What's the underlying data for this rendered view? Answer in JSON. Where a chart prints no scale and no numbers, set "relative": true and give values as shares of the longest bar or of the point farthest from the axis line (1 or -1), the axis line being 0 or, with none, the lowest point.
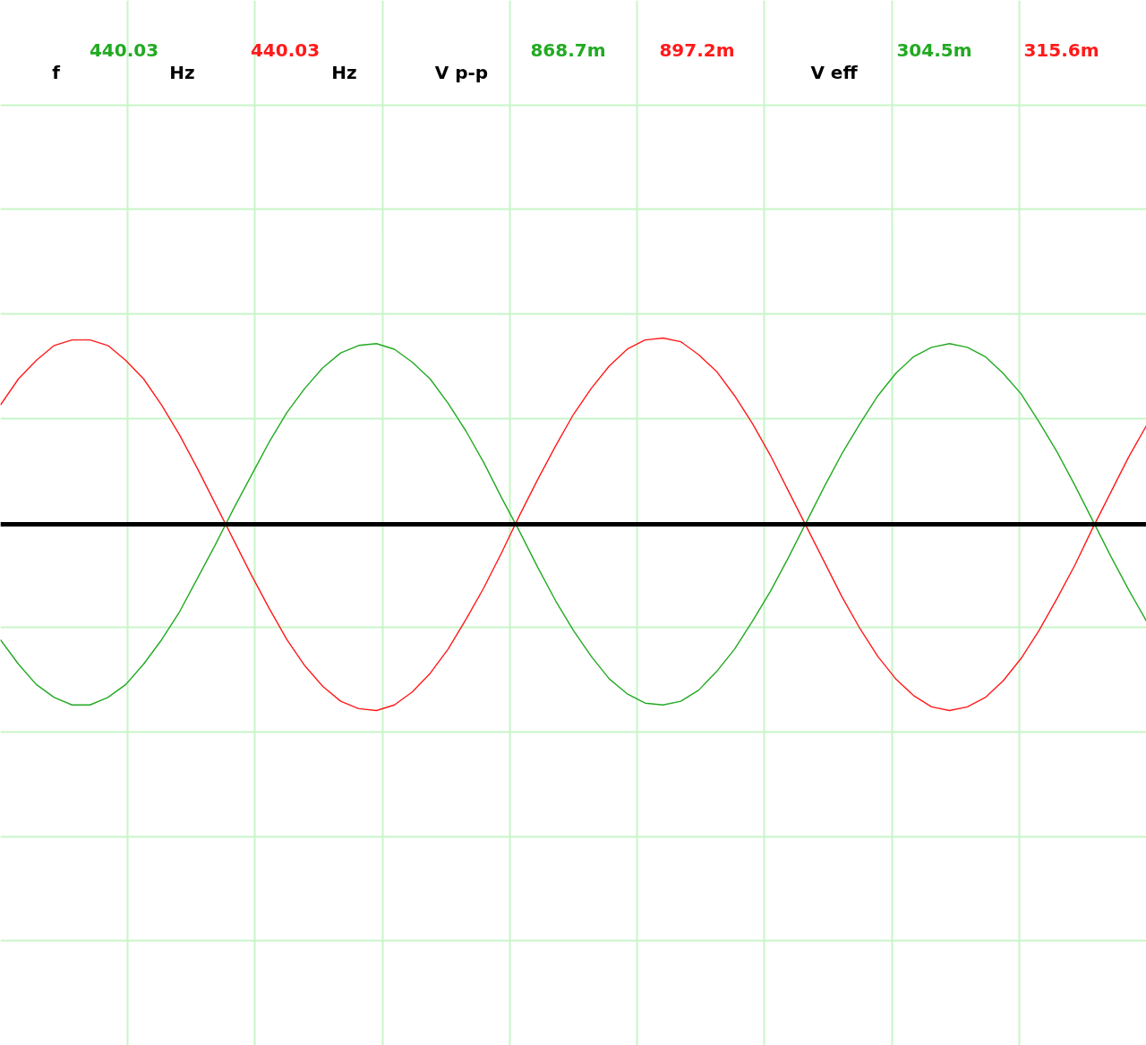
{
  "chart_data": {
    "type": "line",
    "relative": true,
    "tick_labels": false,
    "grid": true,
    "categories": [
      null,
      null,
      null,
      null,
      null,
      null,
      null,
      null,
      null,
      null,
      null,
      null,
      null,
      null,
      null,
      null,
      null,
      null,
      null,
      null,
      null,
      null,
      null,
      null,
      null,
      null,
      null,
      null,
      null,
      null,
      null,
      null,
      null,
      null,
      null,
      null,
      null,
      null,
      null,
      null,
      null,
      null,
      null,
      null,
      null,
      null,
      null,
      null,
      null,
      null,
      null,
      null,
      null,
      null,
      null,
      null,
      null,
      null,
      null,
      null,
      null,
      null,
      null,
      null,
      null
    ],
    "series": [
      {
        "color": "#22aa22",
        "values": [
          -0.62,
          -0.75,
          -0.86,
          -0.93,
          -0.97,
          -0.97,
          -0.93,
          -0.86,
          -0.75,
          -0.62,
          -0.47,
          -0.29,
          -0.11,
          0.08,
          0.26,
          0.44,
          0.6,
          0.73,
          0.84,
          0.92,
          0.96,
          0.97,
          0.94,
          0.87,
          0.78,
          0.65,
          0.5,
          0.33,
          0.14,
          -0.04,
          -0.23,
          -0.41,
          -0.57,
          -0.71,
          -0.83,
          -0.91,
          -0.96,
          -0.97,
          -0.95,
          -0.89,
          -0.79,
          -0.67,
          -0.52,
          -0.36,
          -0.18,
          0.01,
          0.2,
          0.38,
          0.54,
          0.69,
          0.81,
          0.9,
          0.95,
          0.97,
          0.95,
          0.9,
          0.81,
          0.7,
          0.55,
          0.39,
          0.21,
          0.02,
          -0.17,
          -0.35,
          -0.52
        ]
      },
      {
        "color": "#ff1a1a",
        "values": [
          0.64,
          0.78,
          0.88,
          0.96,
          0.99,
          0.99,
          0.96,
          0.88,
          0.78,
          0.64,
          0.48,
          0.3,
          0.11,
          -0.08,
          -0.27,
          -0.45,
          -0.62,
          -0.76,
          -0.87,
          -0.95,
          -0.99,
          -1.0,
          -0.97,
          -0.9,
          -0.8,
          -0.67,
          -0.51,
          -0.34,
          -0.15,
          0.05,
          0.24,
          0.42,
          0.59,
          0.73,
          0.85,
          0.94,
          0.99,
          1.0,
          0.98,
          0.91,
          0.82,
          0.69,
          0.54,
          0.37,
          0.18,
          -0.01,
          -0.2,
          -0.39,
          -0.56,
          -0.71,
          -0.83,
          -0.92,
          -0.98,
          -1.0,
          -0.98,
          -0.93,
          -0.84,
          -0.72,
          -0.57,
          -0.4,
          -0.22,
          -0.02,
          0.17,
          0.36,
          0.53
        ]
      }
    ],
    "annotations": [
      "f",
      "440.03",
      "Hz",
      "440.03",
      "Hz",
      "V p-p",
      "868.7m",
      "897.2m",
      "V eff",
      "304.5m",
      "315.6m"
    ]
  }
}
